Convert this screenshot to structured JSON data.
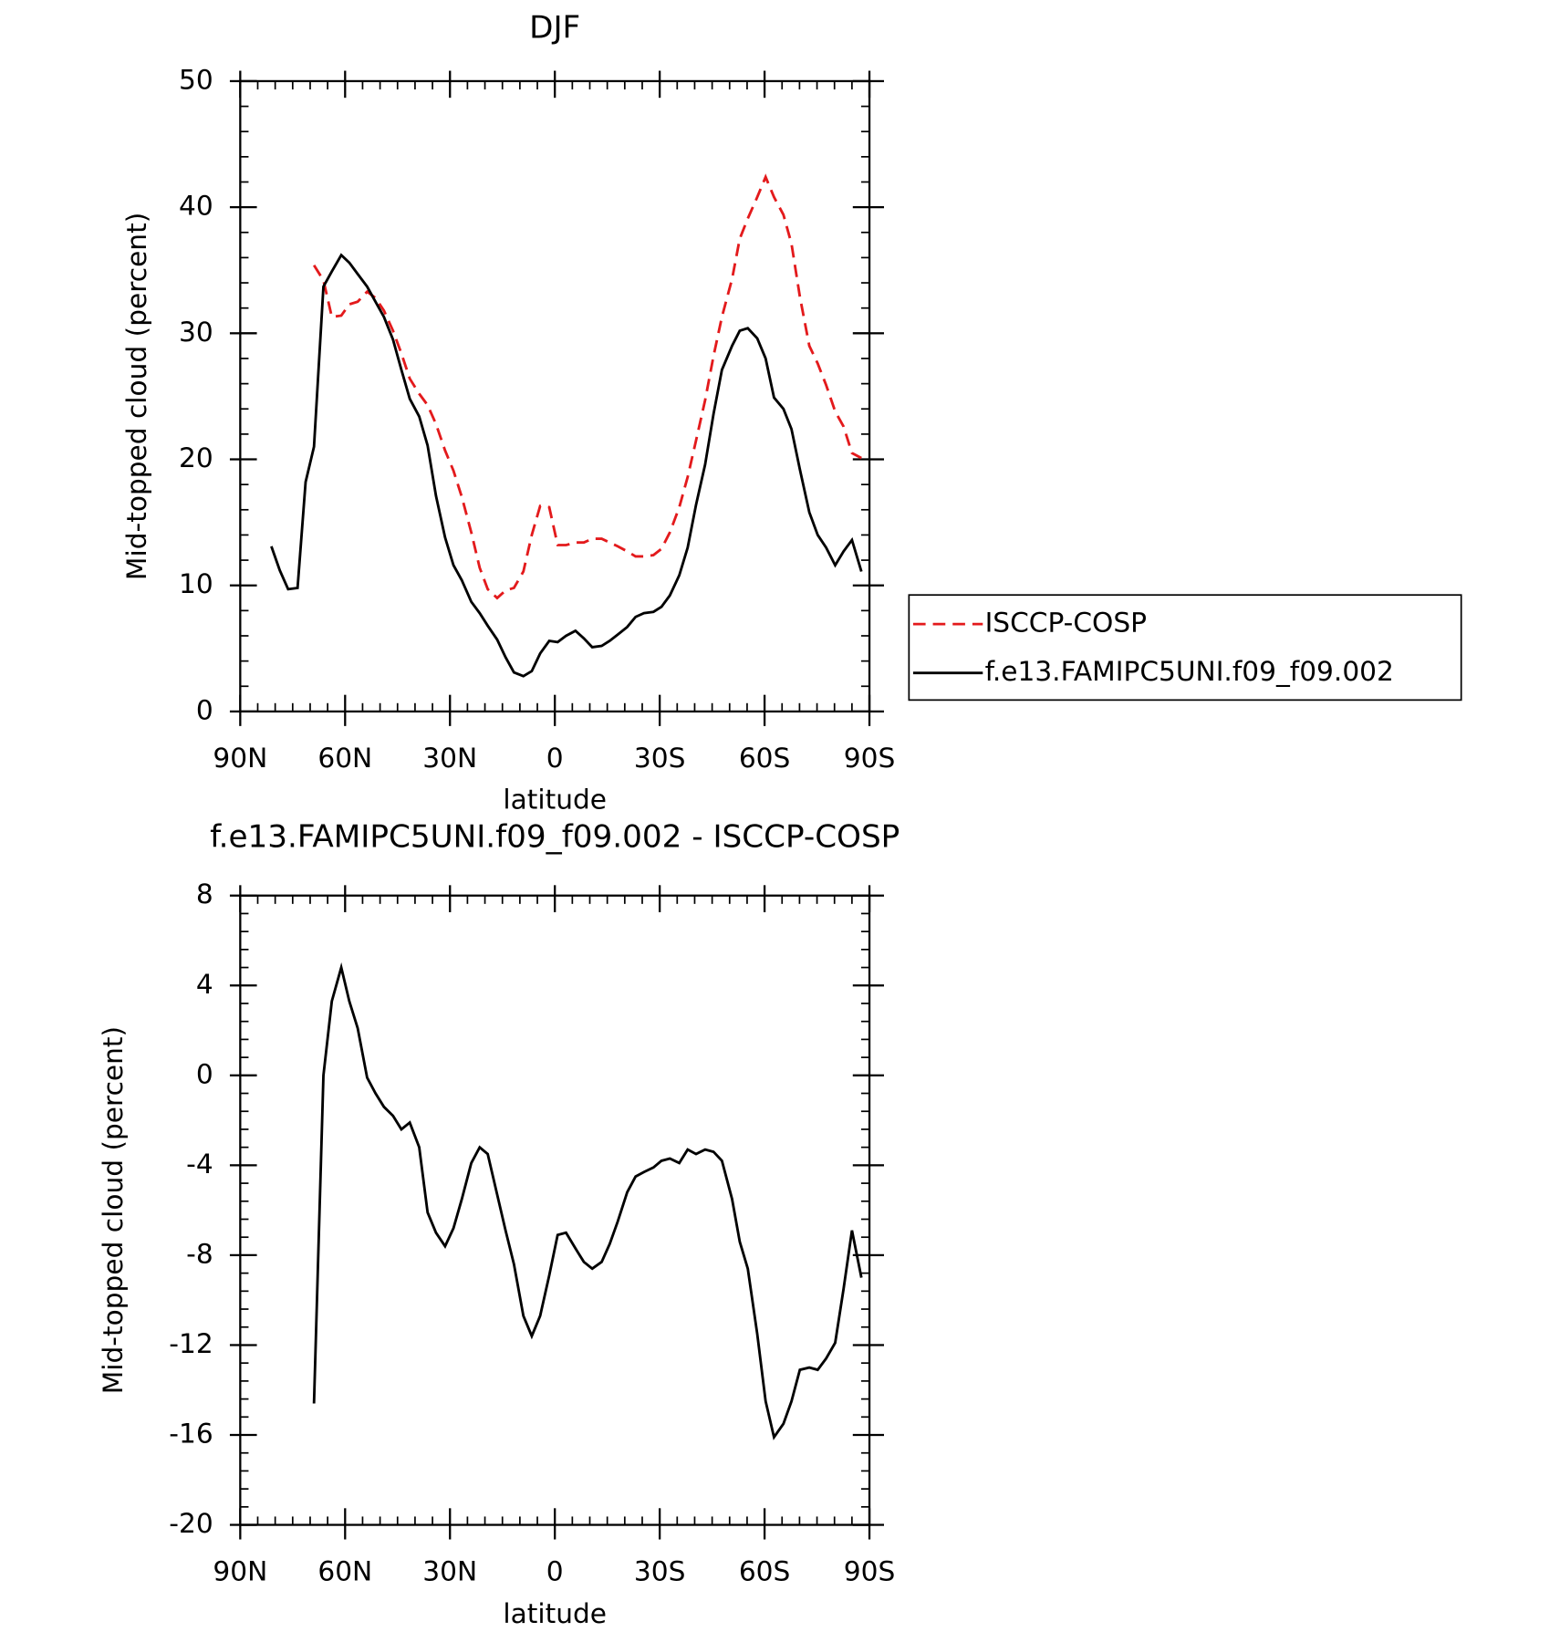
{
  "chart_data": [
    {
      "type": "line",
      "title": "DJF",
      "xlabel": "latitude",
      "ylabel": "Mid-topped cloud (percent)",
      "x": [
        81.1,
        78.7,
        76.3,
        73.6,
        71.3,
        68.9,
        66.2,
        63.8,
        61.1,
        58.8,
        56.4,
        53.7,
        51.3,
        48.9,
        46.3,
        43.9,
        41.5,
        38.8,
        36.4,
        34.0,
        31.4,
        29.0,
        26.6,
        23.9,
        21.5,
        19.2,
        16.5,
        14.1,
        11.7,
        9.0,
        6.6,
        4.2,
        1.6,
        -0.8,
        -3.2,
        -5.9,
        -8.3,
        -10.7,
        -13.4,
        -15.7,
        -18.0,
        -20.7,
        -23.1,
        -25.5,
        -28.2,
        -30.5,
        -32.9,
        -35.6,
        -38.0,
        -40.4,
        -43.0,
        -45.4,
        -47.8,
        -50.7,
        -52.9,
        -55.2,
        -57.9,
        -60.3,
        -62.7,
        -65.4,
        -67.7,
        -70.1,
        -72.8,
        -75.2,
        -77.6,
        -80.2,
        -82.6,
        -85.0,
        -87.7
      ],
      "xlim": [
        90,
        -90
      ],
      "xticks": [
        {
          "value": 90,
          "label": "90N"
        },
        {
          "value": 60,
          "label": "60N"
        },
        {
          "value": 30,
          "label": "30N"
        },
        0,
        {
          "value": -30,
          "label": "30S"
        },
        {
          "value": -60,
          "label": "60S"
        },
        {
          "value": -90,
          "label": "90S"
        }
      ],
      "ylim": [
        0,
        50
      ],
      "yticks": [
        0,
        10,
        20,
        30,
        40,
        50
      ],
      "legend": "right",
      "series": [
        {
          "name": "ISCCP-COSP",
          "color": "#e31a1c",
          "dashed": true,
          "values": [
            null,
            null,
            null,
            null,
            null,
            35.4,
            34.2,
            31.3,
            31.4,
            32.3,
            32.5,
            33.3,
            32.8,
            31.8,
            30.2,
            28.4,
            26.4,
            25.2,
            24.3,
            22.8,
            20.7,
            19.1,
            17.0,
            14.2,
            11.4,
            9.7,
            9.0,
            9.6,
            9.8,
            11.1,
            14.0,
            16.3,
            16.2,
            13.2,
            13.2,
            13.4,
            13.4,
            13.7,
            13.7,
            13.4,
            13.1,
            12.7,
            12.3,
            12.3,
            12.4,
            12.9,
            14.2,
            16.2,
            18.6,
            21.5,
            24.7,
            28.2,
            31.3,
            34.3,
            37.5,
            39.1,
            40.8,
            42.4,
            40.8,
            39.4,
            37.1,
            32.9,
            29.0,
            27.6,
            25.9,
            23.8,
            22.6,
            20.5,
            20.1
          ]
        },
        {
          "name": "f.e13.FAMIPC5UNI.f09_f09.002",
          "color": "#000000",
          "dashed": false,
          "values": [
            13.1,
            11.2,
            9.7,
            9.8,
            18.2,
            21.0,
            33.7,
            34.9,
            36.2,
            35.6,
            34.7,
            33.7,
            32.5,
            31.3,
            29.5,
            27.1,
            24.8,
            23.4,
            21.1,
            17.1,
            13.8,
            11.6,
            10.4,
            8.7,
            7.8,
            6.8,
            5.7,
            4.3,
            3.1,
            2.8,
            3.2,
            4.6,
            5.6,
            5.5,
            6.0,
            6.4,
            5.8,
            5.1,
            5.2,
            5.6,
            6.1,
            6.7,
            7.5,
            7.8,
            7.9,
            8.3,
            9.2,
            10.8,
            13.0,
            16.4,
            19.6,
            23.6,
            27.1,
            29.0,
            30.2,
            30.4,
            29.6,
            28.0,
            24.9,
            24.0,
            22.4,
            19.2,
            15.8,
            14.0,
            13.0,
            11.6,
            12.7,
            13.6,
            11.1
          ]
        }
      ]
    },
    {
      "type": "line",
      "title": "f.e13.FAMIPC5UNI.f09_f09.002 - ISCCP-COSP",
      "xlabel": "latitude",
      "ylabel": "Mid-topped cloud (percent)",
      "x": [
        68.9,
        66.2,
        63.8,
        61.1,
        58.8,
        56.4,
        53.7,
        51.3,
        48.9,
        46.3,
        43.9,
        41.5,
        38.8,
        36.4,
        34.0,
        31.4,
        29.0,
        26.6,
        23.9,
        21.5,
        19.2,
        16.5,
        14.1,
        11.7,
        9.0,
        6.6,
        4.2,
        1.6,
        -0.8,
        -3.2,
        -5.9,
        -8.3,
        -10.7,
        -13.4,
        -15.7,
        -18.0,
        -20.7,
        -23.1,
        -25.5,
        -28.2,
        -30.5,
        -32.9,
        -35.6,
        -38.0,
        -40.4,
        -43.0,
        -45.4,
        -47.8,
        -50.7,
        -52.9,
        -55.2,
        -57.9,
        -60.3,
        -62.7,
        -65.4,
        -67.7,
        -70.1,
        -72.8,
        -75.2,
        -77.6,
        -80.2,
        -82.6,
        -85.0,
        -87.7
      ],
      "xlim": [
        90,
        -90
      ],
      "xticks": [
        {
          "value": 90,
          "label": "90N"
        },
        {
          "value": 60,
          "label": "60N"
        },
        {
          "value": 30,
          "label": "30N"
        },
        0,
        {
          "value": -30,
          "label": "30S"
        },
        {
          "value": -60,
          "label": "60S"
        },
        {
          "value": -90,
          "label": "90S"
        }
      ],
      "ylim": [
        -20,
        8
      ],
      "yticks": [
        -20,
        -16,
        -12,
        -8,
        -4,
        0,
        4,
        8
      ],
      "series": [
        {
          "color": "#000000",
          "dashed": false,
          "values": [
            -14.6,
            0.0,
            3.3,
            4.8,
            3.3,
            2.1,
            -0.1,
            -0.8,
            -1.4,
            -1.8,
            -2.4,
            -2.1,
            -3.2,
            -6.1,
            -7.0,
            -7.6,
            -6.8,
            -5.5,
            -3.9,
            -3.2,
            -3.5,
            -5.3,
            -6.9,
            -8.4,
            -10.7,
            -11.6,
            -10.7,
            -8.9,
            -7.1,
            -7.0,
            -7.7,
            -8.3,
            -8.6,
            -8.3,
            -7.5,
            -6.5,
            -5.2,
            -4.5,
            -4.3,
            -4.1,
            -3.8,
            -3.7,
            -3.9,
            -3.3,
            -3.5,
            -3.3,
            -3.4,
            -3.8,
            -5.5,
            -7.4,
            -8.6,
            -11.5,
            -14.5,
            -16.1,
            -15.5,
            -14.5,
            -13.1,
            -13.0,
            -13.1,
            -12.6,
            -11.9,
            -9.5,
            -6.9,
            -9.0
          ]
        }
      ]
    }
  ]
}
